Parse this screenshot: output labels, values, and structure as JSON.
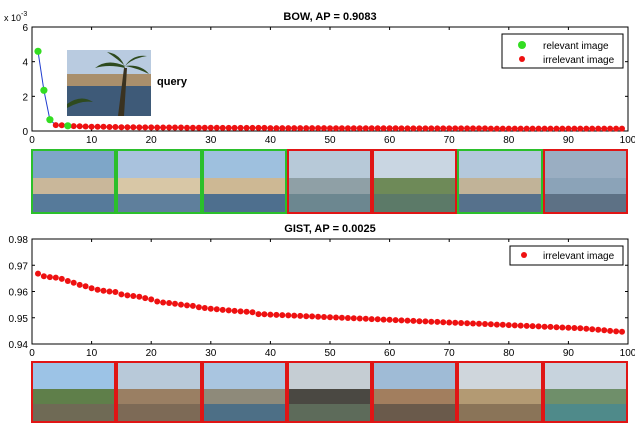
{
  "colors": {
    "relevant": "#33dd22",
    "irrelevant": "#ee1111",
    "line": "#1f3ccf",
    "axis": "#000000",
    "relevant_border": "#2bbf2b",
    "irrelevant_border": "#e01515"
  },
  "query_label": "query",
  "chart_data": [
    {
      "type": "scatter",
      "title": "BOW, AP = 0.9083",
      "xlabel": "",
      "ylabel": "",
      "y_multiplier_label": "x 10",
      "y_multiplier_exponent": "-3",
      "xlim": [
        0,
        100
      ],
      "ylim": [
        0,
        6
      ],
      "xticks": [
        0,
        10,
        20,
        30,
        40,
        50,
        60,
        70,
        80,
        90,
        100
      ],
      "yticks": [
        0,
        2,
        4,
        6
      ],
      "grid": false,
      "legend_position": "top-right",
      "legend": [
        {
          "label": "relevant image",
          "series": "relevant"
        },
        {
          "label": "irrelevant image",
          "series": "irrelevant"
        }
      ],
      "series": [
        {
          "name": "relevant image",
          "x": [
            1,
            2,
            3,
            6
          ],
          "y": [
            4.6,
            2.35,
            0.65,
            0.3
          ]
        },
        {
          "name": "irrelevant image",
          "x": [
            4,
            5,
            7,
            8,
            9,
            10,
            11,
            12,
            13,
            14,
            15,
            16,
            17,
            18,
            19,
            20,
            21,
            22,
            23,
            24,
            25,
            26,
            27,
            28,
            29,
            30,
            31,
            32,
            33,
            34,
            35,
            36,
            37,
            38,
            39,
            40,
            41,
            42,
            43,
            44,
            45,
            46,
            47,
            48,
            49,
            50,
            51,
            52,
            53,
            54,
            55,
            56,
            57,
            58,
            59,
            60,
            61,
            62,
            63,
            64,
            65,
            66,
            67,
            68,
            69,
            70,
            71,
            72,
            73,
            74,
            75,
            76,
            77,
            78,
            79,
            80,
            81,
            82,
            83,
            84,
            85,
            86,
            87,
            88,
            89,
            90,
            91,
            92,
            93,
            94,
            95,
            96,
            97,
            98,
            99
          ],
          "y": [
            0.34,
            0.33,
            0.28,
            0.27,
            0.26,
            0.25,
            0.24,
            0.24,
            0.23,
            0.23,
            0.22,
            0.22,
            0.22,
            0.21,
            0.21,
            0.21,
            0.2,
            0.2,
            0.2,
            0.2,
            0.2,
            0.19,
            0.19,
            0.19,
            0.19,
            0.19,
            0.19,
            0.18,
            0.18,
            0.18,
            0.18,
            0.18,
            0.18,
            0.18,
            0.18,
            0.17,
            0.17,
            0.17,
            0.17,
            0.17,
            0.17,
            0.17,
            0.17,
            0.17,
            0.17,
            0.16,
            0.16,
            0.16,
            0.16,
            0.16,
            0.16,
            0.16,
            0.16,
            0.16,
            0.16,
            0.16,
            0.16,
            0.15,
            0.15,
            0.15,
            0.15,
            0.15,
            0.15,
            0.15,
            0.15,
            0.15,
            0.15,
            0.15,
            0.15,
            0.15,
            0.15,
            0.15,
            0.14,
            0.14,
            0.14,
            0.14,
            0.14,
            0.14,
            0.14,
            0.14,
            0.14,
            0.14,
            0.14,
            0.14,
            0.14,
            0.14,
            0.14,
            0.14,
            0.14,
            0.14,
            0.14,
            0.14,
            0.14,
            0.14,
            0.14
          ]
        }
      ],
      "connect_line": true,
      "thumbnails": [
        "relevant",
        "relevant",
        "relevant",
        "irrelevant",
        "irrelevant",
        "relevant",
        "irrelevant"
      ]
    },
    {
      "type": "scatter",
      "title": "GIST, AP = 0.0025",
      "xlabel": "",
      "ylabel": "",
      "xlim": [
        0,
        100
      ],
      "ylim": [
        0.94,
        0.98
      ],
      "xticks": [
        0,
        10,
        20,
        30,
        40,
        50,
        60,
        70,
        80,
        90,
        100
      ],
      "yticks": [
        0.94,
        0.95,
        0.96,
        0.97,
        0.98
      ],
      "ytick_labels": [
        "0.94",
        "0.95",
        "0.96",
        "0.97",
        "0.98"
      ],
      "grid": false,
      "legend_position": "top-right",
      "legend": [
        {
          "label": "irrelevant image",
          "series": "irrelevant"
        }
      ],
      "series": [
        {
          "name": "irrelevant image",
          "x": [
            1,
            2,
            3,
            4,
            5,
            6,
            7,
            8,
            9,
            10,
            11,
            12,
            13,
            14,
            15,
            16,
            17,
            18,
            19,
            20,
            21,
            22,
            23,
            24,
            25,
            26,
            27,
            28,
            29,
            30,
            31,
            32,
            33,
            34,
            35,
            36,
            37,
            38,
            39,
            40,
            41,
            42,
            43,
            44,
            45,
            46,
            47,
            48,
            49,
            50,
            51,
            52,
            53,
            54,
            55,
            56,
            57,
            58,
            59,
            60,
            61,
            62,
            63,
            64,
            65,
            66,
            67,
            68,
            69,
            70,
            71,
            72,
            73,
            74,
            75,
            76,
            77,
            78,
            79,
            80,
            81,
            82,
            83,
            84,
            85,
            86,
            87,
            88,
            89,
            90,
            91,
            92,
            93,
            94,
            95,
            96,
            97,
            98,
            99
          ],
          "y": [
            0.9668,
            0.9658,
            0.9655,
            0.9653,
            0.9648,
            0.964,
            0.9633,
            0.9625,
            0.962,
            0.9612,
            0.9607,
            0.9603,
            0.96,
            0.9598,
            0.9589,
            0.9585,
            0.9583,
            0.958,
            0.9575,
            0.957,
            0.9562,
            0.9558,
            0.9556,
            0.9553,
            0.955,
            0.9547,
            0.9545,
            0.954,
            0.9537,
            0.9534,
            0.9532,
            0.953,
            0.9528,
            0.9526,
            0.9524,
            0.9523,
            0.9521,
            0.9514,
            0.9513,
            0.9512,
            0.9511,
            0.951,
            0.9509,
            0.9508,
            0.9507,
            0.9506,
            0.9505,
            0.9504,
            0.9503,
            0.9502,
            0.9501,
            0.95,
            0.9499,
            0.9498,
            0.9497,
            0.9496,
            0.9495,
            0.9494,
            0.9493,
            0.9492,
            0.9491,
            0.949,
            0.9489,
            0.9488,
            0.9487,
            0.9486,
            0.9485,
            0.9484,
            0.9483,
            0.9482,
            0.9481,
            0.948,
            0.9479,
            0.9478,
            0.9477,
            0.9476,
            0.9475,
            0.9474,
            0.9473,
            0.9472,
            0.9471,
            0.947,
            0.9469,
            0.9468,
            0.9467,
            0.9466,
            0.9465,
            0.9464,
            0.9463,
            0.9462,
            0.9461,
            0.946,
            0.9458,
            0.9456,
            0.9454,
            0.9452,
            0.945,
            0.9448,
            0.9447
          ]
        }
      ],
      "connect_line": false,
      "thumbnails": [
        "irrelevant",
        "irrelevant",
        "irrelevant",
        "irrelevant",
        "irrelevant",
        "irrelevant",
        "irrelevant"
      ]
    }
  ]
}
